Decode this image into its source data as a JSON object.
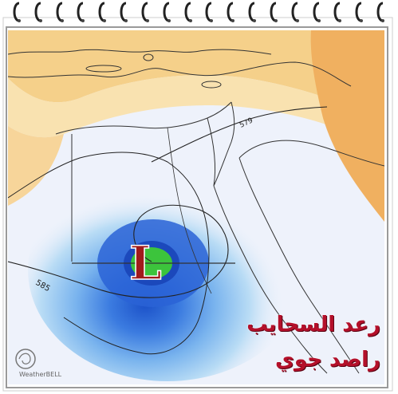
{
  "map": {
    "low_symbol": "L",
    "contour_labels": [
      "585",
      "579"
    ],
    "colors": {
      "low_letter": "#a01b1b",
      "low_outline": "#ffffff",
      "low_center": "#3cc43c",
      "ocean_bg": "#eef2fb",
      "warm_band": "#f5d08a",
      "warm_deep": "#f0b060"
    },
    "watermark": {
      "brand": "WeatherBELL"
    }
  },
  "caption": {
    "line1": "رعد السحايب",
    "line2": "راصد جوي"
  },
  "decor": {
    "spiral_binding": "notebook-rings-icon"
  }
}
